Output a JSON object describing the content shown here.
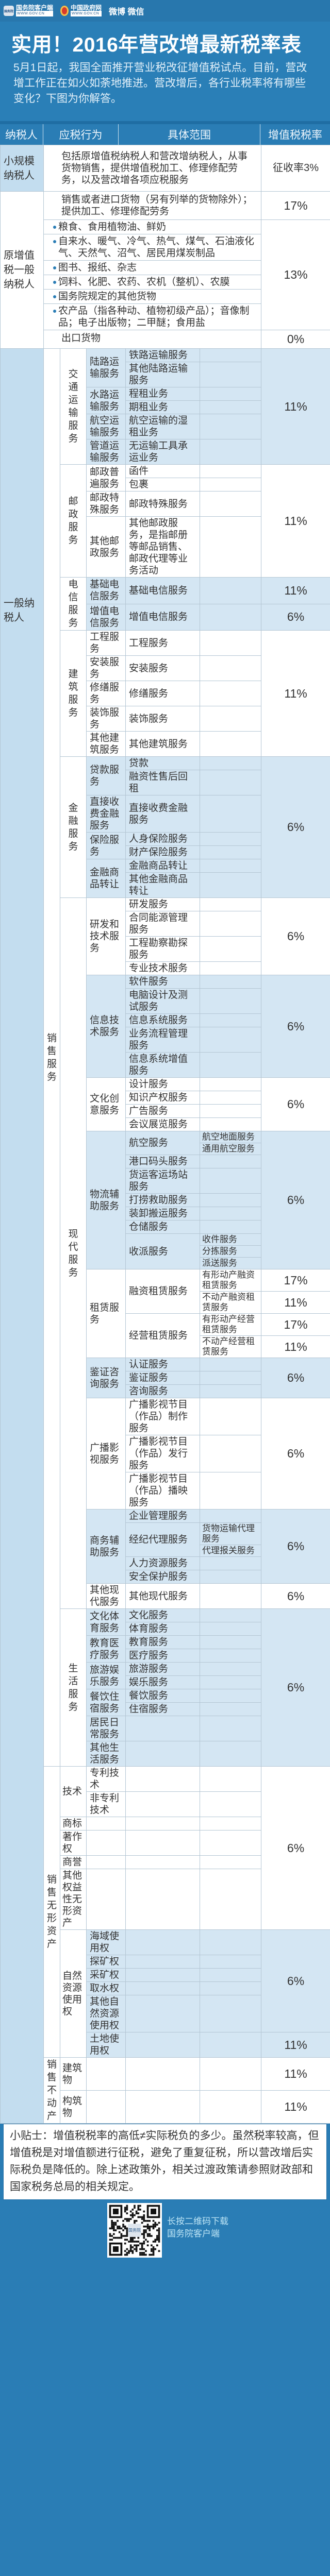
{
  "header": {
    "app_icon_text": "国务院",
    "app_logo_text": "国务院客户端",
    "app_logo_url": "WWW.GOV.CN",
    "gov_logo_text": "中国政府网",
    "gov_logo_url": "WWW.GOV.CN",
    "social": "微博 微信",
    "title": "实用！2016年营改增最新税率表",
    "intro": "5月1日起，我国全面推开营业税改征增值税试点。目前，营改增工作正在如火如荼地推进。营改增后，各行业税率将有哪些变化？下图为你解答。"
  },
  "table": {
    "columns": [
      "纳税人",
      "应税行为",
      "具体范围",
      "增值税税率"
    ],
    "small_scale": {
      "taxpayer": "小规模纳税人",
      "scope": "包括原增值税纳税人和营改增纳税人，从事货物销售，提供增值税加工、修理修配劳务，以及营改增各项应税服务",
      "rate": "征收率3%"
    },
    "original": {
      "taxpayer": "原增值税一般纳税人",
      "goods": {
        "scope": "销售或者进口货物（另有列举的货物除外）；提供加工、修理修配劳务",
        "rate": "17%"
      },
      "reduced": {
        "rate": "13%",
        "items": [
          "粮食、食用植物油、鲜奶",
          "自来水、暖气、冷气、热气、煤气、石油液化气、天然气、沼气、居民用煤炭制品",
          "图书、报纸、杂志",
          "饲料、化肥、农药、农机（整机）、农膜",
          "国务院规定的其他货物",
          "农产品（指各种动、植物初级产品）；音像制品；电子出版物；二甲醚；食用盐"
        ]
      },
      "export": {
        "scope": "出口货物",
        "rate": "0%"
      }
    },
    "general": {
      "taxpayer": "一般纳税人",
      "sections": [
        {
          "label": "销售服务",
          "children": [
            {
              "label": "交通运输服务",
              "shade": true,
              "rate": "11%",
              "children": [
                {
                  "label": "陆路运输服务",
                  "children": [
                    {
                      "label": "铁路运输服务"
                    },
                    {
                      "label": "其他陆路运输服务"
                    }
                  ]
                },
                {
                  "label": "水路运输服务",
                  "children": [
                    {
                      "label": "程租业务"
                    },
                    {
                      "label": "期租业务"
                    }
                  ]
                },
                {
                  "label": "航空运输服务",
                  "children": [
                    {
                      "label": "航空运输的湿租业务"
                    }
                  ]
                },
                {
                  "label": "管道运输服务",
                  "children": [
                    {
                      "label": "无运输工具承运业务"
                    }
                  ]
                }
              ]
            },
            {
              "label": "邮政服务",
              "rate": "11%",
              "children": [
                {
                  "label": "邮政普遍服务",
                  "children": [
                    {
                      "label": "函件"
                    },
                    {
                      "label": "包裹"
                    }
                  ]
                },
                {
                  "label": "邮政特殊服务",
                  "children": [
                    {
                      "label": "邮政特殊服务"
                    }
                  ]
                },
                {
                  "label": "其他邮政服务",
                  "children": [
                    {
                      "label": "其他邮政服务，是指邮册等邮品销售、邮政代理等业务活动"
                    }
                  ]
                }
              ]
            },
            {
              "label": "电信服务",
              "shade": true,
              "children": [
                {
                  "label": "基础电信服务",
                  "rate": "11%",
                  "children": [
                    {
                      "label": "基础电信服务"
                    }
                  ]
                },
                {
                  "label": "增值电信服务",
                  "rate": "6%",
                  "children": [
                    {
                      "label": "增值电信服务"
                    }
                  ]
                }
              ]
            },
            {
              "label": "建筑服务",
              "rate": "11%",
              "children": [
                {
                  "label": "工程服务",
                  "children": [
                    {
                      "label": "工程服务"
                    }
                  ]
                },
                {
                  "label": "安装服务",
                  "children": [
                    {
                      "label": "安装服务"
                    }
                  ]
                },
                {
                  "label": "修缮服务",
                  "children": [
                    {
                      "label": "修缮服务"
                    }
                  ]
                },
                {
                  "label": "装饰服务",
                  "children": [
                    {
                      "label": "装饰服务"
                    }
                  ]
                },
                {
                  "label": "其他建筑服务",
                  "children": [
                    {
                      "label": "其他建筑服务"
                    }
                  ]
                }
              ]
            },
            {
              "label": "金融服务",
              "shade": true,
              "rate": "6%",
              "children": [
                {
                  "label": "贷款服务",
                  "children": [
                    {
                      "label": "贷款"
                    },
                    {
                      "label": "融资性售后回租"
                    }
                  ]
                },
                {
                  "label": "直接收费金融服务",
                  "children": [
                    {
                      "label": "直接收费金融服务"
                    }
                  ]
                },
                {
                  "label": "保险服务",
                  "children": [
                    {
                      "label": "人身保险服务"
                    },
                    {
                      "label": "财产保险服务"
                    }
                  ]
                },
                {
                  "label": "金融商品转让",
                  "children": [
                    {
                      "label": "金融商品转让"
                    },
                    {
                      "label": "其他金融商品转让"
                    }
                  ]
                }
              ]
            },
            {
              "label": "现代服务",
              "children": [
                {
                  "label": "研发和技术服务",
                  "rate": "6%",
                  "children": [
                    {
                      "label": "研发服务"
                    },
                    {
                      "label": "合同能源管理服务"
                    },
                    {
                      "label": "工程勘察勘探服务"
                    },
                    {
                      "label": "专业技术服务"
                    }
                  ]
                },
                {
                  "label": "信息技术服务",
                  "shade": true,
                  "rate": "6%",
                  "children": [
                    {
                      "label": "软件服务"
                    },
                    {
                      "label": "电脑设计及测试服务"
                    },
                    {
                      "label": "信息系统服务"
                    },
                    {
                      "label": "业务流程管理服务"
                    },
                    {
                      "label": "信息系统增值服务"
                    }
                  ]
                },
                {
                  "label": "文化创意服务",
                  "rate": "6%",
                  "children": [
                    {
                      "label": "设计服务"
                    },
                    {
                      "label": "知识产权服务"
                    },
                    {
                      "label": "广告服务"
                    },
                    {
                      "label": "会议展览服务"
                    }
                  ]
                },
                {
                  "label": "物流辅助服务",
                  "shade": true,
                  "rate": "6%",
                  "children": [
                    {
                      "label": "航空服务",
                      "children": [
                        {
                          "label": "航空地面服务"
                        },
                        {
                          "label": "通用航空服务"
                        }
                      ]
                    },
                    {
                      "label": "港口码头服务"
                    },
                    {
                      "label": "货运客运场站服务"
                    },
                    {
                      "label": "打捞救助服务"
                    },
                    {
                      "label": "装卸搬运服务"
                    },
                    {
                      "label": "仓储服务"
                    },
                    {
                      "label": "收派服务",
                      "children": [
                        {
                          "label": "收件服务"
                        },
                        {
                          "label": "分拣服务"
                        },
                        {
                          "label": "派送服务"
                        }
                      ]
                    }
                  ]
                },
                {
                  "label": "租赁服务",
                  "children": [
                    {
                      "label": "融资租赁服务",
                      "children": [
                        {
                          "label": "有形动产融资租赁服务",
                          "rate": "17%"
                        },
                        {
                          "label": "不动产融资租赁服务",
                          "rate": "11%"
                        }
                      ]
                    },
                    {
                      "label": "经营租赁服务",
                      "children": [
                        {
                          "label": "有形动产经营租赁服务",
                          "rate": "17%"
                        },
                        {
                          "label": "不动产经营租赁服务",
                          "rate": "11%"
                        }
                      ]
                    }
                  ]
                },
                {
                  "label": "鉴证咨询服务",
                  "shade": true,
                  "rate": "6%",
                  "children": [
                    {
                      "label": "认证服务"
                    },
                    {
                      "label": "鉴证服务"
                    },
                    {
                      "label": "咨询服务"
                    }
                  ]
                },
                {
                  "label": "广播影视服务",
                  "rate": "6%",
                  "children": [
                    {
                      "label": "广播影视节目（作品）制作服务"
                    },
                    {
                      "label": "广播影视节目（作品）发行服务"
                    },
                    {
                      "label": "广播影视节目（作品）播映服务"
                    }
                  ]
                },
                {
                  "label": "商务辅助服务",
                  "shade": true,
                  "rate": "6%",
                  "children": [
                    {
                      "label": "企业管理服务"
                    },
                    {
                      "label": "经纪代理服务",
                      "children": [
                        {
                          "label": "货物运输代理服务"
                        },
                        {
                          "label": "代理报关服务"
                        }
                      ]
                    },
                    {
                      "label": "人力资源服务"
                    },
                    {
                      "label": "安全保护服务"
                    }
                  ]
                },
                {
                  "label": "其他现代服务",
                  "rate": "6%",
                  "children": [
                    {
                      "label": "其他现代服务"
                    }
                  ]
                }
              ]
            },
            {
              "label": "生活服务",
              "shade": true,
              "rate": "6%",
              "children": [
                {
                  "label": "文化体育服务",
                  "children": [
                    {
                      "label": "文化服务"
                    },
                    {
                      "label": "体育服务"
                    }
                  ]
                },
                {
                  "label": "教育医疗服务",
                  "children": [
                    {
                      "label": "教育服务"
                    },
                    {
                      "label": "医疗服务"
                    }
                  ]
                },
                {
                  "label": "旅游娱乐服务",
                  "children": [
                    {
                      "label": "旅游服务"
                    },
                    {
                      "label": "娱乐服务"
                    }
                  ]
                },
                {
                  "label": "餐饮住宿服务",
                  "children": [
                    {
                      "label": "餐饮服务"
                    },
                    {
                      "label": "住宿服务"
                    }
                  ]
                },
                {
                  "label": "居民日常服务"
                },
                {
                  "label": "其他生活服务"
                }
              ]
            }
          ]
        },
        {
          "label": "销售无形资产",
          "children": [
            {
              "rate": "6%",
              "children": [
                {
                  "label": "技术",
                  "children": [
                    {
                      "label": "专利技术"
                    },
                    {
                      "label": "非专利技术"
                    }
                  ]
                },
                {
                  "label": "商标"
                },
                {
                  "label": "著作权"
                },
                {
                  "label": "商誉"
                },
                {
                  "label": "其他权益性无形资产"
                }
              ]
            },
            {
              "label": "自然资源使用权",
              "shade": true,
              "children": [
                {
                  "rate": "6%",
                  "children": [
                    {
                      "label": "海域使用权"
                    },
                    {
                      "label": "探矿权"
                    },
                    {
                      "label": "采矿权"
                    },
                    {
                      "label": "取水权"
                    },
                    {
                      "label": "其他自然资源使用权"
                    }
                  ]
                },
                {
                  "label": "土地使用权",
                  "rate": "11%"
                }
              ]
            }
          ]
        },
        {
          "label": "销售不动产",
          "children": [
            {
              "label": "建筑物",
              "rate": "11%"
            },
            {
              "label": "构筑物",
              "rate": "11%"
            }
          ]
        }
      ]
    }
  },
  "tip": "小贴士：增值税税率的高低≠实际税负的多少。虽然税率较高，但增值税是对增值额进行征税，避免了重复征税，所以营改增后实际税负是降低的。除上述政策外，相关过渡政策请参照财政部和国家税务总局的相关规定。",
  "footer": {
    "qr_center_text": "国务院",
    "line1": "长按二维码下载",
    "line2": "国务院客户端"
  },
  "colors": {
    "brand_blue": "#2a7db5",
    "row_shade": "#d4e6f3",
    "taxpayer_col": "#c3ddef"
  }
}
